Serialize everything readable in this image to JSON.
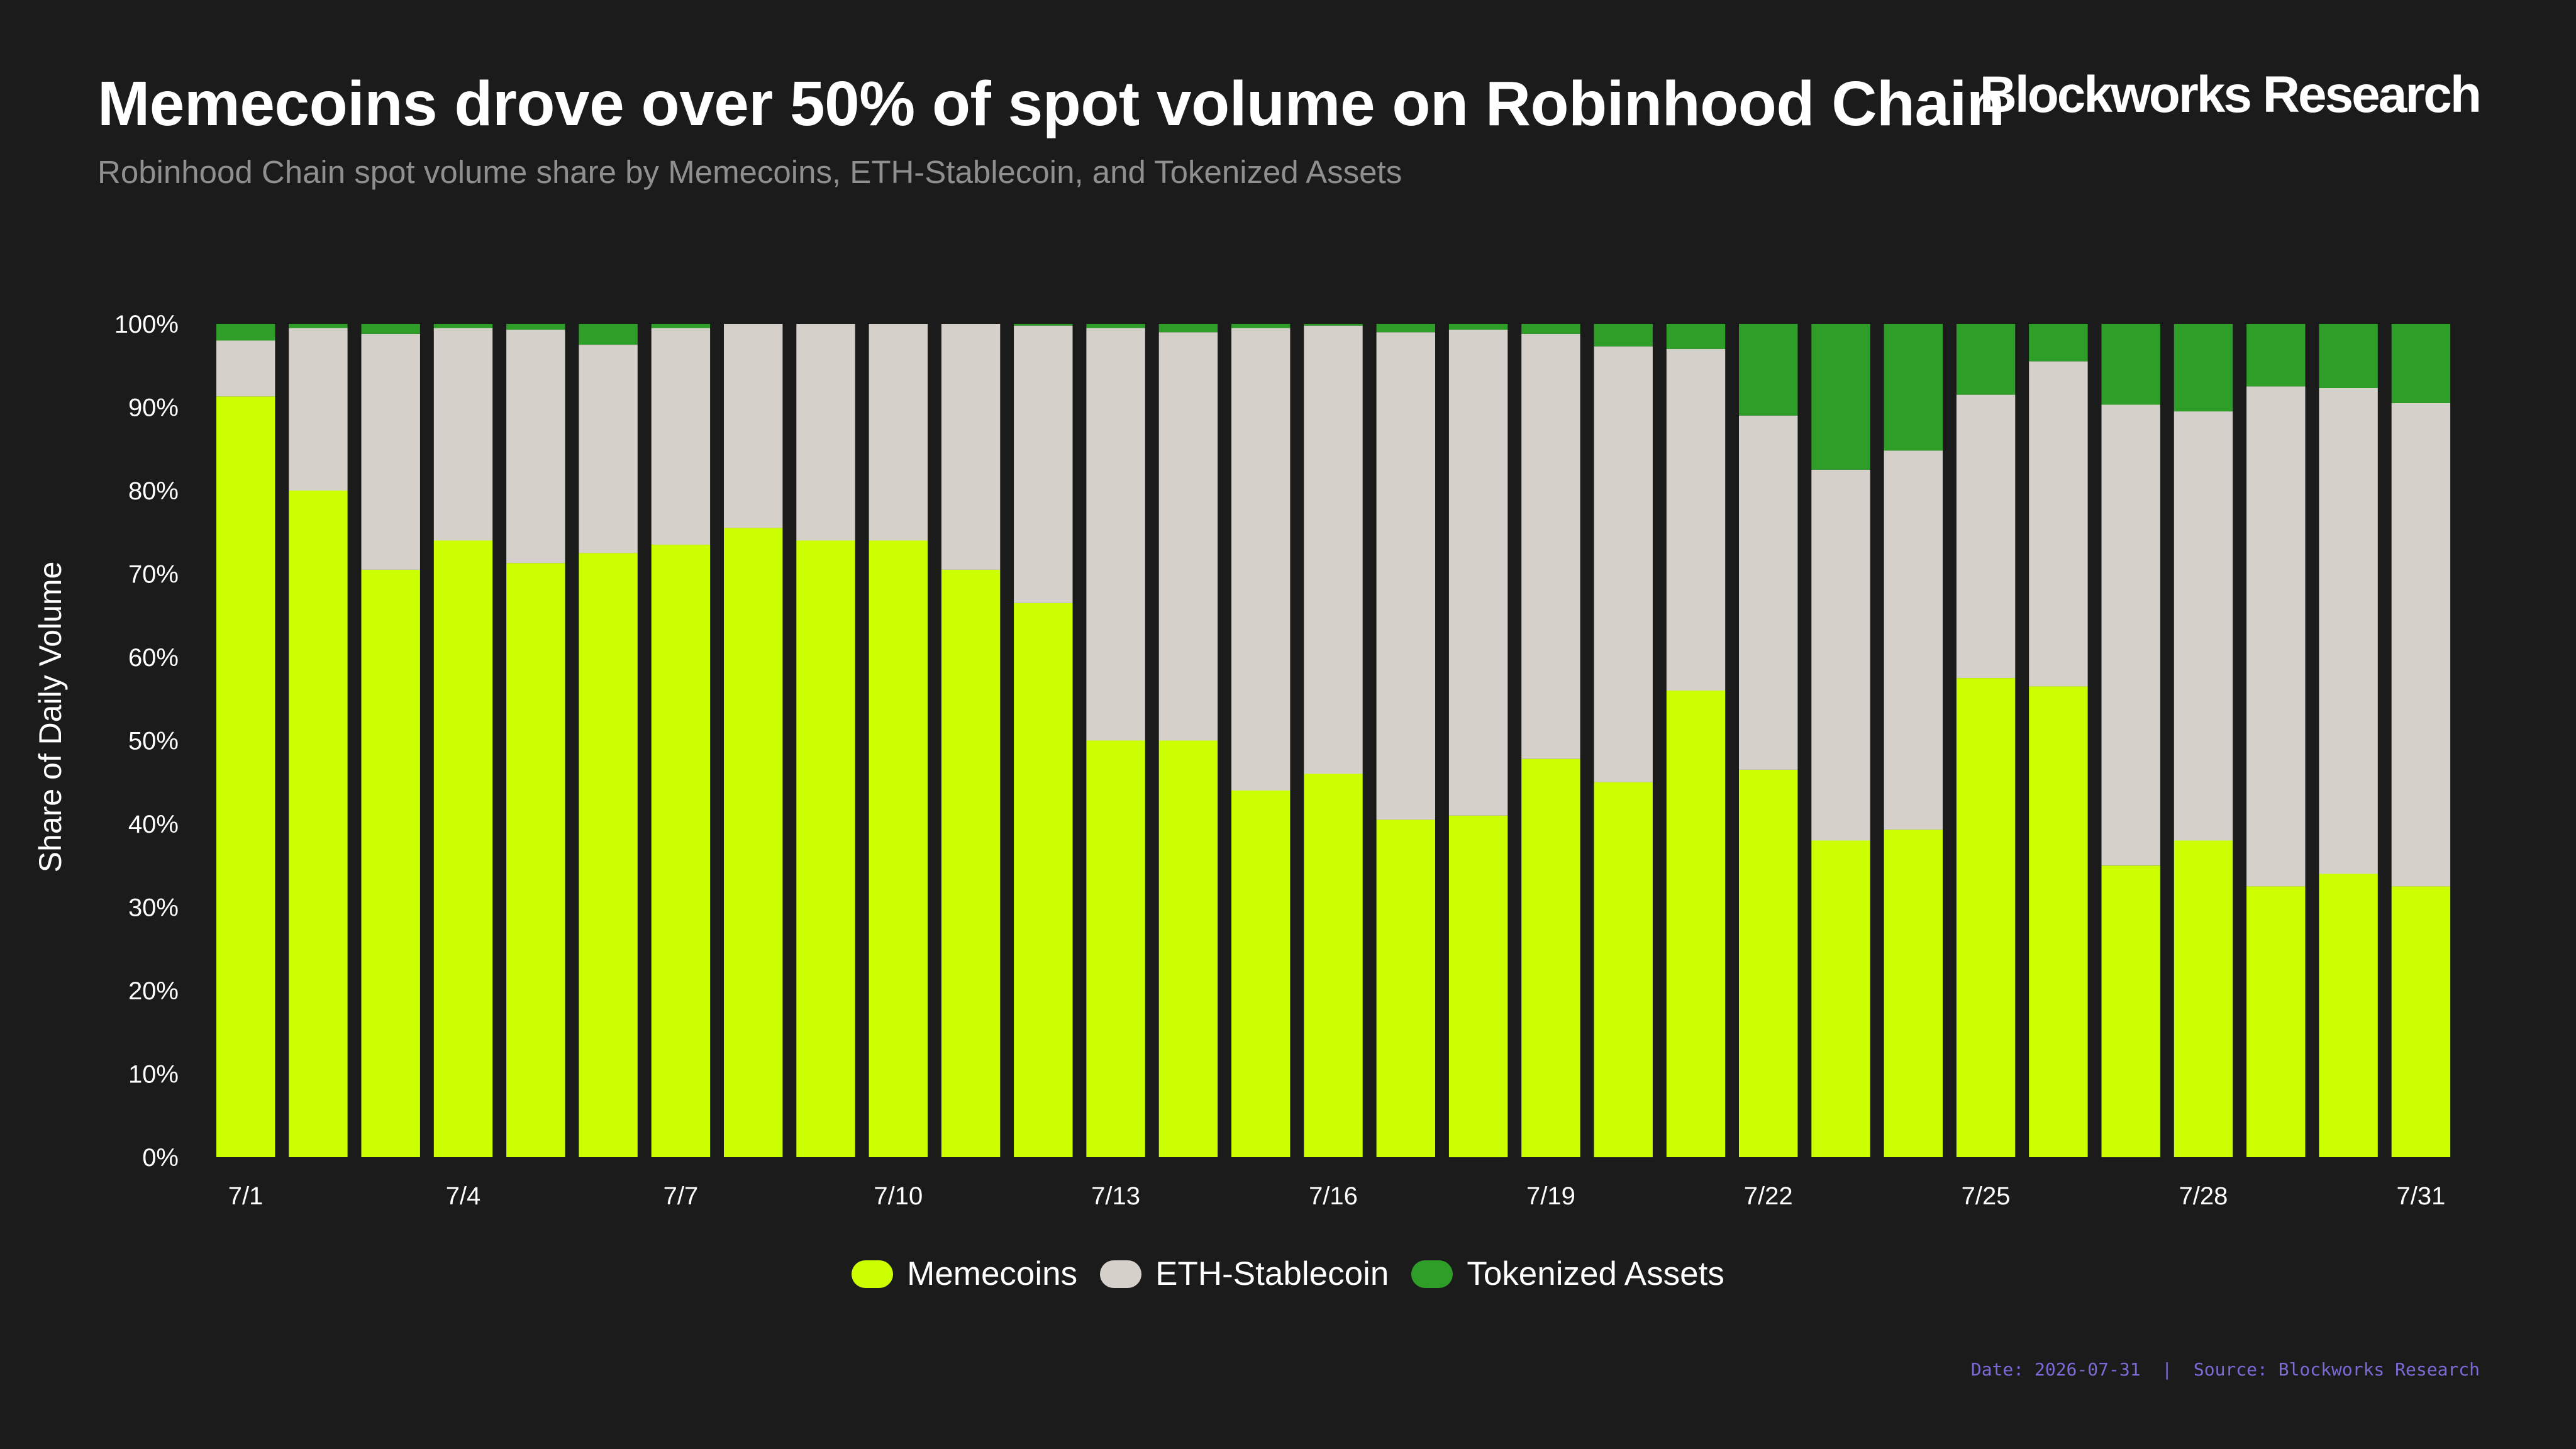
{
  "header": {
    "title": "Memecoins drove over 50% of spot volume on Robinhood Chain",
    "subtitle": "Robinhood Chain spot volume share by Memecoins, ETH-Stablecoin, and Tokenized Assets",
    "brand": "Blockworks Research"
  },
  "footer": {
    "text": "Date: 2026-07-31  |  Source: Blockworks Research"
  },
  "colors": {
    "background": "#1b1b1b",
    "memecoins": "#ccff00",
    "eth_stablecoin": "#d5d0ca",
    "tokenized_assets": "#2e9e28"
  },
  "chart_data": {
    "type": "bar",
    "stacked": true,
    "title": "Memecoins drove over 50% of spot volume on Robinhood Chain",
    "xlabel": "",
    "ylabel": "Share of Daily Volume",
    "ylim": [
      0,
      100
    ],
    "y_ticks": [
      "0%",
      "10%",
      "20%",
      "30%",
      "40%",
      "50%",
      "60%",
      "70%",
      "80%",
      "90%",
      "100%"
    ],
    "categories": [
      "7/1",
      "7/2",
      "7/3",
      "7/4",
      "7/5",
      "7/6",
      "7/7",
      "7/8",
      "7/9",
      "7/10",
      "7/11",
      "7/12",
      "7/13",
      "7/14",
      "7/15",
      "7/16",
      "7/17",
      "7/18",
      "7/19",
      "7/20",
      "7/21",
      "7/22",
      "7/23",
      "7/24",
      "7/25",
      "7/26",
      "7/27",
      "7/28",
      "7/29",
      "7/30",
      "7/31"
    ],
    "x_tick_labels": [
      "7/1",
      "7/4",
      "7/7",
      "7/10",
      "7/13",
      "7/16",
      "7/19",
      "7/22",
      "7/25",
      "7/28",
      "7/31"
    ],
    "grid": false,
    "legend_position": "bottom-center",
    "series": [
      {
        "name": "Memecoins",
        "values": [
          91.3,
          80.0,
          70.5,
          74.0,
          71.3,
          72.5,
          73.5,
          75.5,
          74.0,
          74.0,
          70.5,
          66.5,
          50.0,
          50.0,
          44.0,
          46.0,
          40.5,
          41.0,
          47.8,
          45.0,
          56.0,
          46.5,
          38.0,
          39.3,
          57.5,
          56.5,
          35.0,
          38.0,
          32.5,
          34.0,
          32.5
        ]
      },
      {
        "name": "ETH-Stablecoin",
        "values": [
          6.7,
          19.5,
          28.3,
          25.5,
          28.0,
          25.0,
          26.0,
          24.5,
          26.0,
          26.0,
          29.5,
          33.3,
          49.5,
          49.0,
          55.5,
          53.8,
          58.5,
          58.3,
          51.0,
          52.3,
          41.0,
          42.5,
          44.5,
          45.5,
          34.0,
          39.0,
          55.3,
          51.5,
          60.0,
          58.3,
          58.0
        ]
      },
      {
        "name": "Tokenized Assets",
        "values": [
          2.0,
          0.5,
          1.2,
          0.5,
          0.7,
          2.5,
          0.5,
          0.0,
          0.0,
          0.0,
          0.0,
          0.2,
          0.5,
          1.0,
          0.5,
          0.2,
          1.0,
          0.7,
          1.2,
          2.7,
          3.0,
          11.0,
          17.5,
          15.2,
          8.5,
          4.5,
          9.7,
          10.5,
          7.5,
          7.7,
          9.5
        ]
      }
    ]
  }
}
